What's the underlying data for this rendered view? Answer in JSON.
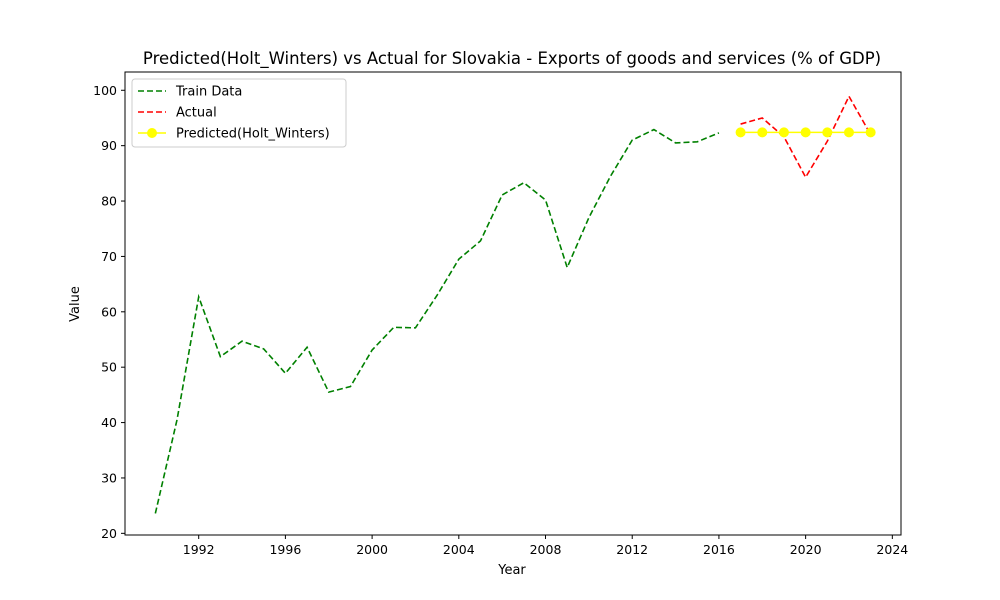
{
  "chart_data": {
    "type": "line",
    "title": "Predicted(Holt_Winters) vs Actual for Slovakia - Exports of goods and services (% of GDP)",
    "xlabel": "Year",
    "ylabel": "Value",
    "xlim": [
      1988.6,
      2024.4
    ],
    "ylim": [
      19.7,
      103.3
    ],
    "xticks": [
      1992,
      1996,
      2000,
      2004,
      2008,
      2012,
      2016,
      2020,
      2024
    ],
    "yticks": [
      20,
      30,
      40,
      50,
      60,
      70,
      80,
      90,
      100
    ],
    "legend_position": "upper-left",
    "series": [
      {
        "name": "Train Data",
        "color": "#008000",
        "style": "dashed",
        "x": [
          1990,
          1991,
          1992,
          1993,
          1994,
          1995,
          1996,
          1997,
          1998,
          1999,
          2000,
          2001,
          2002,
          2003,
          2004,
          2005,
          2006,
          2007,
          2008,
          2009,
          2010,
          2011,
          2012,
          2013,
          2014,
          2015,
          2016
        ],
        "y": [
          23.6,
          40.5,
          62.7,
          51.9,
          54.7,
          53.3,
          48.9,
          53.6,
          45.5,
          46.5,
          53.1,
          57.2,
          57.1,
          63.0,
          69.5,
          72.8,
          81.1,
          83.3,
          80.2,
          68.0,
          77.0,
          84.5,
          91.0,
          92.9,
          90.5,
          90.7,
          92.3
        ]
      },
      {
        "name": "Actual",
        "color": "#ff0000",
        "style": "dashed",
        "x": [
          2017,
          2018,
          2019,
          2020,
          2021,
          2022,
          2023
        ],
        "y": [
          93.9,
          95.0,
          91.6,
          84.3,
          90.8,
          98.9,
          92.0
        ]
      },
      {
        "name": "Predicted(Holt_Winters)",
        "color": "#ffff00",
        "style": "solid-marker",
        "x": [
          2017,
          2018,
          2019,
          2020,
          2021,
          2022,
          2023
        ],
        "y": [
          92.4,
          92.4,
          92.4,
          92.4,
          92.4,
          92.4,
          92.4
        ]
      }
    ]
  }
}
